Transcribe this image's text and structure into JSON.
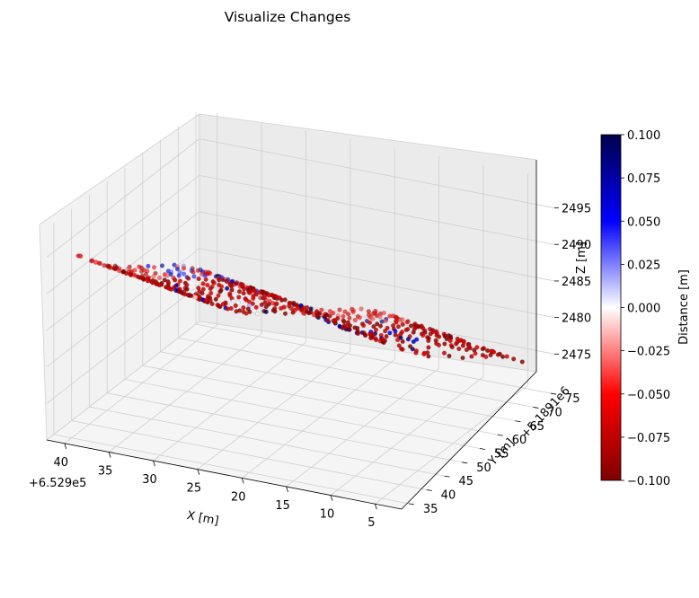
{
  "chart_data": {
    "type": "scatter",
    "dimensions": 3,
    "title": "Visualize Changes",
    "xlabel": "X [m]",
    "ylabel": "Y [m]",
    "zlabel": "Z [m]",
    "x_offset_label": "+6.529e5",
    "y_offset_label": "+5.1891e6",
    "x_ticks": [
      "40",
      "35",
      "30",
      "25",
      "20",
      "15",
      "10",
      "5"
    ],
    "y_ticks": [
      "35",
      "40",
      "45",
      "50",
      "55",
      "60",
      "65",
      "70",
      "75"
    ],
    "z_ticks": [
      "2475",
      "2480",
      "2485",
      "2490",
      "2495"
    ],
    "xlim": [
      2,
      42
    ],
    "ylim": [
      33,
      76
    ],
    "zlim": [
      2470,
      2499
    ],
    "grid": true,
    "colorbar": {
      "label": "Distance [m]",
      "ticks": [
        "0.100",
        "0.075",
        "0.050",
        "0.025",
        "0.000",
        "−0.025",
        "−0.050",
        "−0.075",
        "−0.100"
      ],
      "range": [
        -0.1,
        0.1
      ],
      "colormap": "seismic",
      "colors": [
        "#7f0000",
        "#ff0000",
        "#ffffff",
        "#0000ff",
        "#00004c"
      ]
    },
    "series": [
      {
        "description": "Point cloud of change distances; roughly 1500 points sampled on a terrain surface spanning X 4–40, Y 35–73, Z 2470–2497 with distances mostly between −0.100 and −0.050 and a few positive clusters",
        "x_range": [
          4,
          40
        ],
        "y_range": [
          35,
          73
        ],
        "z_range": [
          2470,
          2497
        ],
        "value_range": [
          -0.1,
          0.1
        ]
      }
    ]
  }
}
